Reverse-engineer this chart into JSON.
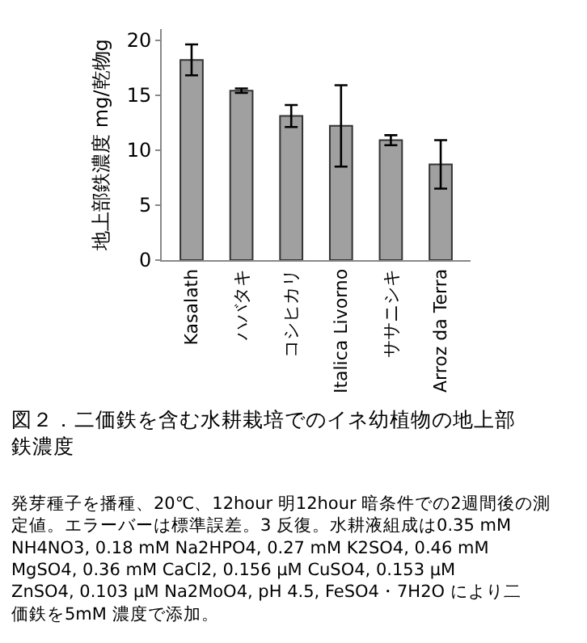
{
  "chart_data": {
    "type": "bar",
    "title": "図２．二価鉄を含む水耕栽培でのイネ幼植物の地上部鉄濃度",
    "ylabel": "地上部鉄濃度 mg/乾物g",
    "categories": [
      "Kasalath",
      "ハバタキ",
      "コシヒカリ",
      "Italica Livorno",
      "ササニシキ",
      "Arroz da Terra"
    ],
    "values": [
      18.2,
      15.4,
      13.1,
      12.2,
      10.9,
      8.7
    ],
    "errors": [
      1.4,
      0.2,
      1.0,
      3.7,
      0.45,
      2.2
    ],
    "color": "#a0a0a0",
    "ylim": [
      0,
      21
    ],
    "yticks": [
      0,
      5,
      10,
      15,
      20
    ],
    "annotations": [
      "発芽種子を播種、20℃、12hour 明12hour 暗条件での2週間後の測定値。エラーバーは標準誤差。3 反復。水耕液組成は0.35 mM NH4NO3, 0.18 mM Na2HPO4, 0.27 mM K2SO4, 0.46 mM MgSO4, 0.36 mM CaCl2, 0.156 μM CuSO4, 0.153 μM ZnSO4, 0.103 μM Na2MoO4, pH 4.5, FeSO4・7H2O により二価鉄を5mM 濃度で添加。"
    ]
  }
}
